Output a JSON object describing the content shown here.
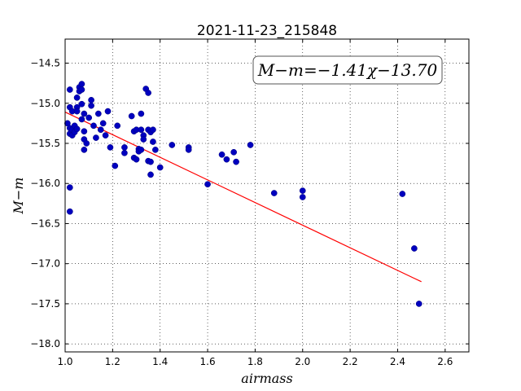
{
  "chart_data": {
    "type": "scatter",
    "title": "2021-11-23_215848",
    "xlabel": "airmass",
    "ylabel": "M−m",
    "xlim": [
      1.0,
      2.7
    ],
    "ylim": [
      -18.1,
      -14.2
    ],
    "xticks": [
      1.0,
      1.2,
      1.4,
      1.6,
      1.8,
      2.0,
      2.2,
      2.4,
      2.6
    ],
    "xtick_labels": [
      "1.0",
      "1.2",
      "1.4",
      "1.6",
      "1.8",
      "2.0",
      "2.2",
      "2.4",
      "2.6"
    ],
    "yticks": [
      -14.5,
      -15.0,
      -15.5,
      -16.0,
      -16.5,
      -17.0,
      -17.5,
      -18.0
    ],
    "ytick_labels": [
      "−14.5",
      "−15.0",
      "−15.5",
      "−16.0",
      "−16.5",
      "−17.0",
      "−17.5",
      "−18.0"
    ],
    "grid": true,
    "annotation": "M−m=−1.41χ−13.70",
    "annotation_position": "top-right",
    "marker_color": "#0000bf",
    "fit_color": "#ff0000",
    "fit": {
      "slope": -1.41,
      "intercept": -13.7,
      "x_range": [
        1.0,
        2.5
      ]
    },
    "points": [
      {
        "x": 1.01,
        "y": -15.25
      },
      {
        "x": 1.02,
        "y": -15.05
      },
      {
        "x": 1.02,
        "y": -14.83
      },
      {
        "x": 1.02,
        "y": -15.31
      },
      {
        "x": 1.02,
        "y": -15.38
      },
      {
        "x": 1.03,
        "y": -15.4
      },
      {
        "x": 1.03,
        "y": -15.33
      },
      {
        "x": 1.03,
        "y": -15.1
      },
      {
        "x": 1.04,
        "y": -15.28
      },
      {
        "x": 1.04,
        "y": -15.36
      },
      {
        "x": 1.05,
        "y": -15.05
      },
      {
        "x": 1.05,
        "y": -14.93
      },
      {
        "x": 1.05,
        "y": -15.32
      },
      {
        "x": 1.05,
        "y": -15.1
      },
      {
        "x": 1.06,
        "y": -14.8
      },
      {
        "x": 1.06,
        "y": -14.85
      },
      {
        "x": 1.07,
        "y": -14.76
      },
      {
        "x": 1.07,
        "y": -14.83
      },
      {
        "x": 1.07,
        "y": -15.01
      },
      {
        "x": 1.07,
        "y": -15.2
      },
      {
        "x": 1.08,
        "y": -15.13
      },
      {
        "x": 1.08,
        "y": -15.35
      },
      {
        "x": 1.08,
        "y": -15.45
      },
      {
        "x": 1.08,
        "y": -15.58
      },
      {
        "x": 1.09,
        "y": -15.5
      },
      {
        "x": 1.1,
        "y": -15.18
      },
      {
        "x": 1.11,
        "y": -15.03
      },
      {
        "x": 1.11,
        "y": -14.96
      },
      {
        "x": 1.12,
        "y": -15.28
      },
      {
        "x": 1.13,
        "y": -15.43
      },
      {
        "x": 1.14,
        "y": -15.13
      },
      {
        "x": 1.15,
        "y": -15.33
      },
      {
        "x": 1.16,
        "y": -15.25
      },
      {
        "x": 1.17,
        "y": -15.4
      },
      {
        "x": 1.18,
        "y": -15.1
      },
      {
        "x": 1.19,
        "y": -15.55
      },
      {
        "x": 1.22,
        "y": -15.28
      },
      {
        "x": 1.21,
        "y": -15.78
      },
      {
        "x": 1.25,
        "y": -15.55
      },
      {
        "x": 1.25,
        "y": -15.62
      },
      {
        "x": 1.28,
        "y": -15.16
      },
      {
        "x": 1.29,
        "y": -15.35
      },
      {
        "x": 1.3,
        "y": -15.33
      },
      {
        "x": 1.29,
        "y": -15.68
      },
      {
        "x": 1.3,
        "y": -15.7
      },
      {
        "x": 1.31,
        "y": -15.57
      },
      {
        "x": 1.31,
        "y": -15.6
      },
      {
        "x": 1.32,
        "y": -15.33
      },
      {
        "x": 1.32,
        "y": -15.13
      },
      {
        "x": 1.33,
        "y": -15.4
      },
      {
        "x": 1.33,
        "y": -15.45
      },
      {
        "x": 1.32,
        "y": -15.58
      },
      {
        "x": 1.34,
        "y": -14.82
      },
      {
        "x": 1.35,
        "y": -14.87
      },
      {
        "x": 1.35,
        "y": -15.33
      },
      {
        "x": 1.36,
        "y": -15.36
      },
      {
        "x": 1.35,
        "y": -15.72
      },
      {
        "x": 1.36,
        "y": -15.73
      },
      {
        "x": 1.36,
        "y": -15.89
      },
      {
        "x": 1.37,
        "y": -15.33
      },
      {
        "x": 1.37,
        "y": -15.48
      },
      {
        "x": 1.38,
        "y": -15.58
      },
      {
        "x": 1.4,
        "y": -15.8
      },
      {
        "x": 1.45,
        "y": -15.52
      },
      {
        "x": 1.52,
        "y": -15.55
      },
      {
        "x": 1.52,
        "y": -15.58
      },
      {
        "x": 1.6,
        "y": -16.01
      },
      {
        "x": 1.66,
        "y": -15.64
      },
      {
        "x": 1.68,
        "y": -15.7
      },
      {
        "x": 1.71,
        "y": -15.61
      },
      {
        "x": 1.72,
        "y": -15.73
      },
      {
        "x": 1.78,
        "y": -15.52
      },
      {
        "x": 1.88,
        "y": -16.12
      },
      {
        "x": 2.0,
        "y": -16.09
      },
      {
        "x": 2.0,
        "y": -16.17
      },
      {
        "x": 1.02,
        "y": -16.05
      },
      {
        "x": 1.02,
        "y": -16.35
      },
      {
        "x": 2.42,
        "y": -16.13
      },
      {
        "x": 2.47,
        "y": -16.81
      },
      {
        "x": 2.49,
        "y": -17.5
      }
    ]
  }
}
